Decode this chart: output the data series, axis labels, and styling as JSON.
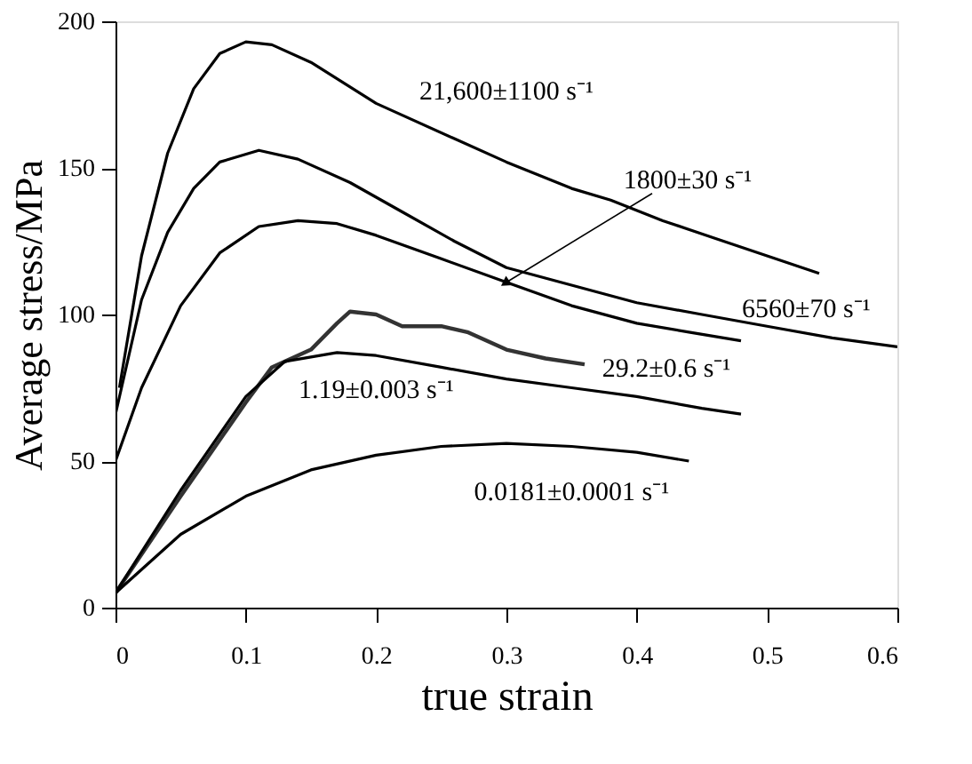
{
  "chart_data": {
    "type": "line",
    "xlabel": "true strain",
    "ylabel": "Average stress/MPa",
    "xlim": [
      0,
      0.6
    ],
    "xticks": [
      0,
      0.1,
      0.2,
      0.3,
      0.4,
      0.5,
      0.6
    ],
    "ylim": [
      0,
      200
    ],
    "yticks": [
      0,
      50,
      100,
      150,
      200
    ],
    "grid": false,
    "marker": "none",
    "line_style": "solid",
    "series": [
      {
        "name": "21,600±1100 s⁻¹",
        "color": "#000000",
        "x": [
          0.003,
          0.02,
          0.04,
          0.06,
          0.08,
          0.1,
          0.12,
          0.15,
          0.2,
          0.26,
          0.3,
          0.35,
          0.38,
          0.42,
          0.46,
          0.5,
          0.54
        ],
        "values": [
          75,
          120,
          155,
          177,
          189,
          193,
          192,
          186,
          172,
          160,
          152,
          143,
          139,
          132,
          126,
          120,
          114
        ]
      },
      {
        "name": "6560±70 s⁻¹",
        "color": "#000000",
        "x": [
          0.0,
          0.02,
          0.04,
          0.06,
          0.08,
          0.11,
          0.14,
          0.18,
          0.22,
          0.26,
          0.3,
          0.35,
          0.4,
          0.45,
          0.5,
          0.55,
          0.6
        ],
        "values": [
          66,
          105,
          128,
          143,
          152,
          156,
          153,
          145,
          135,
          125,
          116,
          110,
          104,
          100,
          96,
          92,
          89
        ]
      },
      {
        "name": "1800±30 s⁻¹",
        "color": "#000000",
        "x": [
          0.0,
          0.02,
          0.05,
          0.08,
          0.11,
          0.14,
          0.17,
          0.2,
          0.25,
          0.3,
          0.35,
          0.4,
          0.44,
          0.48
        ],
        "values": [
          50,
          75,
          103,
          121,
          130,
          132,
          131,
          127,
          119,
          111,
          103,
          97,
          94,
          91
        ]
      },
      {
        "name": "29.2±0.6 s⁻¹",
        "color": "#333333",
        "x": [
          0.0,
          0.05,
          0.1,
          0.12,
          0.15,
          0.17,
          0.18,
          0.2,
          0.22,
          0.25,
          0.27,
          0.3,
          0.33,
          0.36
        ],
        "values": [
          5,
          38,
          70,
          82,
          88,
          97,
          101,
          100,
          96,
          96,
          94,
          88,
          85,
          83
        ]
      },
      {
        "name": "1.19±0.003 s⁻¹",
        "color": "#000000",
        "x": [
          0.0,
          0.05,
          0.1,
          0.13,
          0.17,
          0.2,
          0.25,
          0.3,
          0.35,
          0.4,
          0.45,
          0.48
        ],
        "values": [
          5,
          40,
          72,
          84,
          87,
          86,
          82,
          78,
          75,
          72,
          68,
          66
        ]
      },
      {
        "name": "0.0181±0.0001 s⁻¹",
        "color": "#000000",
        "x": [
          0.0,
          0.05,
          0.1,
          0.15,
          0.2,
          0.25,
          0.3,
          0.35,
          0.4,
          0.44
        ],
        "values": [
          5,
          25,
          38,
          47,
          52,
          55,
          56,
          55,
          53,
          50
        ]
      }
    ]
  }
}
